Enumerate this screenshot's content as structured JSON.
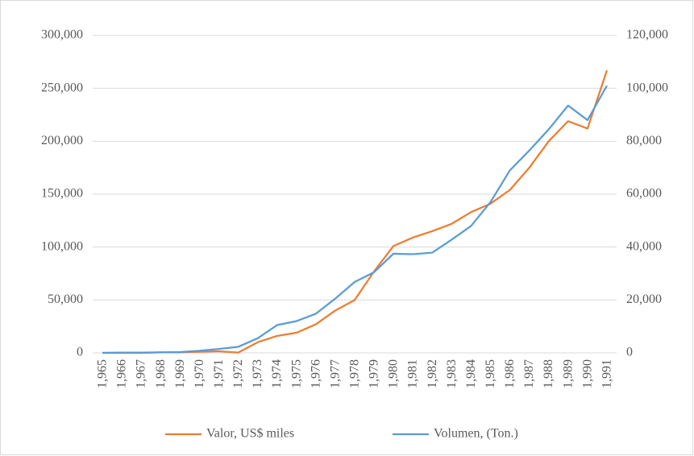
{
  "chart_data": {
    "type": "line",
    "categories": [
      "1,965",
      "1,966",
      "1,967",
      "1,968",
      "1,969",
      "1,970",
      "1,971",
      "1,972",
      "1,973",
      "1,974",
      "1,975",
      "1,976",
      "1,977",
      "1,978",
      "1,979",
      "1,980",
      "1,981",
      "1,982",
      "1,983",
      "1,984",
      "1,985",
      "1,986",
      "1,987",
      "1,988",
      "1,989",
      "1,990",
      "1,991"
    ],
    "series": [
      {
        "name": "Valor, US$ miles",
        "color": "#ed7d31",
        "axis": "y",
        "values": [
          0,
          0,
          0,
          500,
          500,
          1000,
          1500,
          300,
          10000,
          16000,
          19000,
          27000,
          40000,
          50000,
          77000,
          101000,
          109000,
          115000,
          122000,
          133000,
          141000,
          154000,
          175000,
          200000,
          219000,
          212000,
          267000
        ]
      },
      {
        "name": "Volumen, (Ton.)",
        "color": "#5b9bd5",
        "axis": "y2",
        "values": [
          0,
          100,
          100,
          200,
          300,
          800,
          1500,
          2300,
          5500,
          10500,
          12000,
          14800,
          20500,
          26800,
          30500,
          37500,
          37300,
          37900,
          42800,
          48000,
          57000,
          69000,
          76500,
          84500,
          93500,
          88000,
          101000
        ]
      }
    ],
    "ylim": [
      0,
      300000
    ],
    "yticks": [
      0,
      {
        "value": 50000,
        "label": "50,000"
      },
      {
        "value": 100000,
        "label": "100,000"
      },
      {
        "value": 150000,
        "label": "150,000"
      },
      {
        "value": 200000,
        "label": "200,000"
      },
      {
        "value": 250000,
        "label": "250,000"
      },
      {
        "value": 300000,
        "label": "300,000"
      }
    ],
    "y2lim": [
      0,
      120000
    ],
    "y2ticks": [
      0,
      {
        "value": 20000,
        "label": "20,000"
      },
      {
        "value": 40000,
        "label": "40,000"
      },
      {
        "value": 60000,
        "label": "60,000"
      },
      {
        "value": 80000,
        "label": "80,000"
      },
      {
        "value": 100000,
        "label": "100,000"
      },
      {
        "value": 120000,
        "label": "120,000"
      }
    ],
    "grid": true,
    "legend": "bottom"
  }
}
